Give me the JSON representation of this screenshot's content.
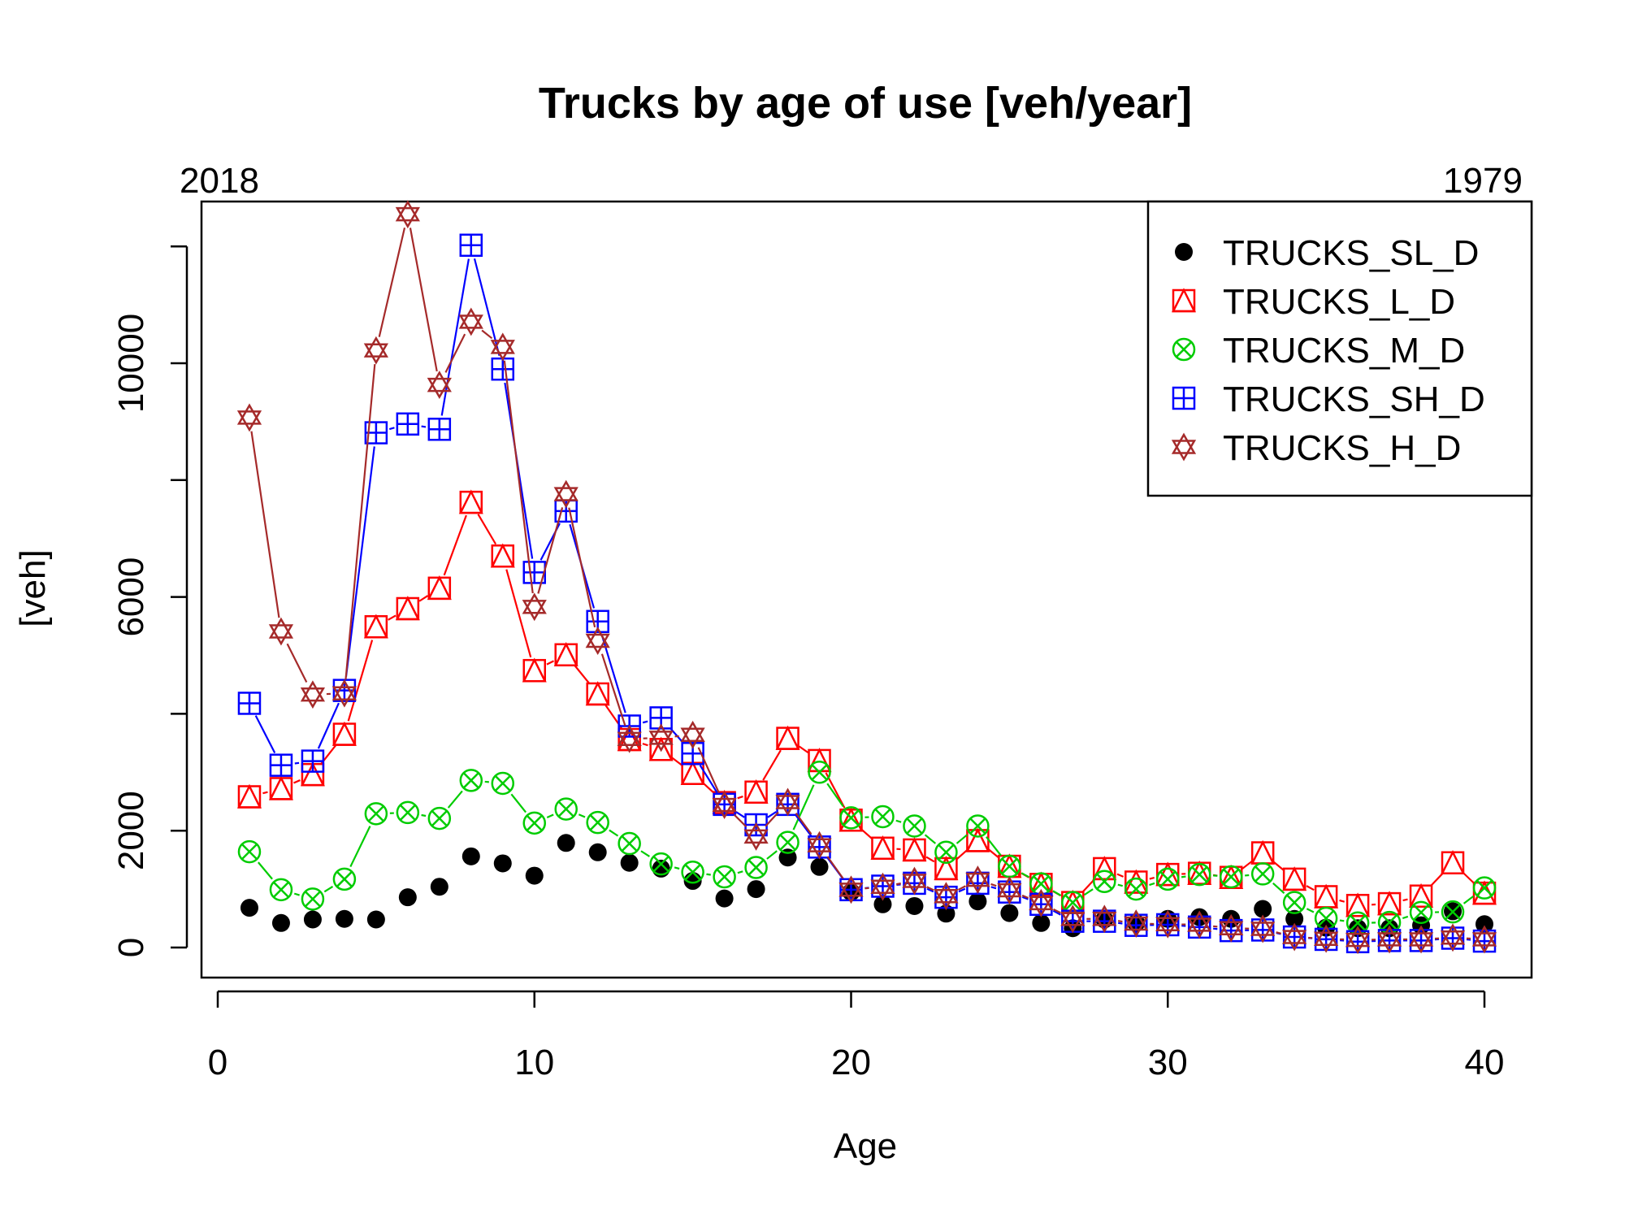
{
  "chart_data": {
    "type": "line",
    "title": "Trucks by age of use [veh/year]",
    "xlabel": "Age",
    "ylabel": "[veh]",
    "top_left_label": "2018",
    "top_right_label": "1979",
    "xlim": [
      0,
      40
    ],
    "ylim": [
      0,
      12000
    ],
    "xticks": [
      0,
      10,
      20,
      30,
      40
    ],
    "yticks": [
      0,
      2000,
      6000,
      10000
    ],
    "grid": false,
    "legend_position": "top-right",
    "x": [
      1,
      2,
      3,
      4,
      5,
      6,
      7,
      8,
      9,
      10,
      11,
      12,
      13,
      14,
      15,
      16,
      17,
      18,
      19,
      20,
      21,
      22,
      23,
      24,
      25,
      26,
      27,
      28,
      29,
      30,
      31,
      32,
      33,
      34,
      35,
      36,
      37,
      38,
      39,
      40
    ],
    "series": [
      {
        "name": "TRUCKS_SL_D",
        "color": "#000000",
        "marker": "filled-circle",
        "line": false,
        "values": [
          680,
          420,
          480,
          490,
          480,
          860,
          1040,
          1560,
          1440,
          1230,
          1790,
          1630,
          1450,
          1350,
          1140,
          840,
          1000,
          1540,
          1380,
          950,
          740,
          710,
          580,
          790,
          590,
          420,
          330,
          480,
          420,
          490,
          520,
          490,
          660,
          490,
          340,
          330,
          330,
          380,
          620,
          400
        ]
      },
      {
        "name": "TRUCKS_L_D",
        "color": "#ff0000",
        "marker": "triangle-in-square",
        "line": true,
        "values": [
          2580,
          2720,
          2960,
          3650,
          5490,
          5800,
          6150,
          7620,
          6700,
          4740,
          5010,
          4340,
          3560,
          3390,
          2980,
          2480,
          2660,
          3580,
          3200,
          2180,
          1700,
          1670,
          1350,
          1830,
          1390,
          1080,
          770,
          1350,
          1120,
          1250,
          1270,
          1200,
          1620,
          1170,
          870,
          720,
          750,
          880,
          1450,
          930
        ]
      },
      {
        "name": "TRUCKS_M_D",
        "color": "#00cc00",
        "marker": "x-in-circle",
        "line": true,
        "values": [
          1640,
          990,
          830,
          1170,
          2290,
          2310,
          2210,
          2860,
          2810,
          2130,
          2370,
          2140,
          1780,
          1430,
          1290,
          1210,
          1370,
          1800,
          3000,
          2220,
          2240,
          2080,
          1630,
          2080,
          1390,
          1090,
          770,
          1130,
          1000,
          1170,
          1250,
          1210,
          1260,
          770,
          500,
          420,
          430,
          600,
          610,
          1020
        ]
      },
      {
        "name": "TRUCKS_SH_D",
        "color": "#0000ff",
        "marker": "plus-in-square",
        "line": true,
        "values": [
          4180,
          3120,
          3190,
          4400,
          8810,
          8960,
          8870,
          12020,
          9900,
          6420,
          7470,
          5580,
          3790,
          3930,
          3320,
          2450,
          2100,
          2450,
          1720,
          990,
          1050,
          1100,
          860,
          1100,
          950,
          740,
          450,
          450,
          380,
          390,
          350,
          290,
          300,
          180,
          140,
          100,
          120,
          120,
          160,
          110
        ]
      },
      {
        "name": "TRUCKS_H_D",
        "color": "#a52a2a",
        "marker": "star-of-david",
        "line": true,
        "values": [
          9070,
          5410,
          4330,
          4350,
          10220,
          12550,
          9630,
          10710,
          10280,
          5830,
          7760,
          5250,
          3570,
          3590,
          3640,
          2440,
          1900,
          2490,
          1750,
          990,
          1040,
          1140,
          880,
          1160,
          980,
          760,
          490,
          490,
          410,
          400,
          390,
          330,
          320,
          180,
          150,
          130,
          140,
          140,
          170,
          140
        ]
      }
    ]
  }
}
